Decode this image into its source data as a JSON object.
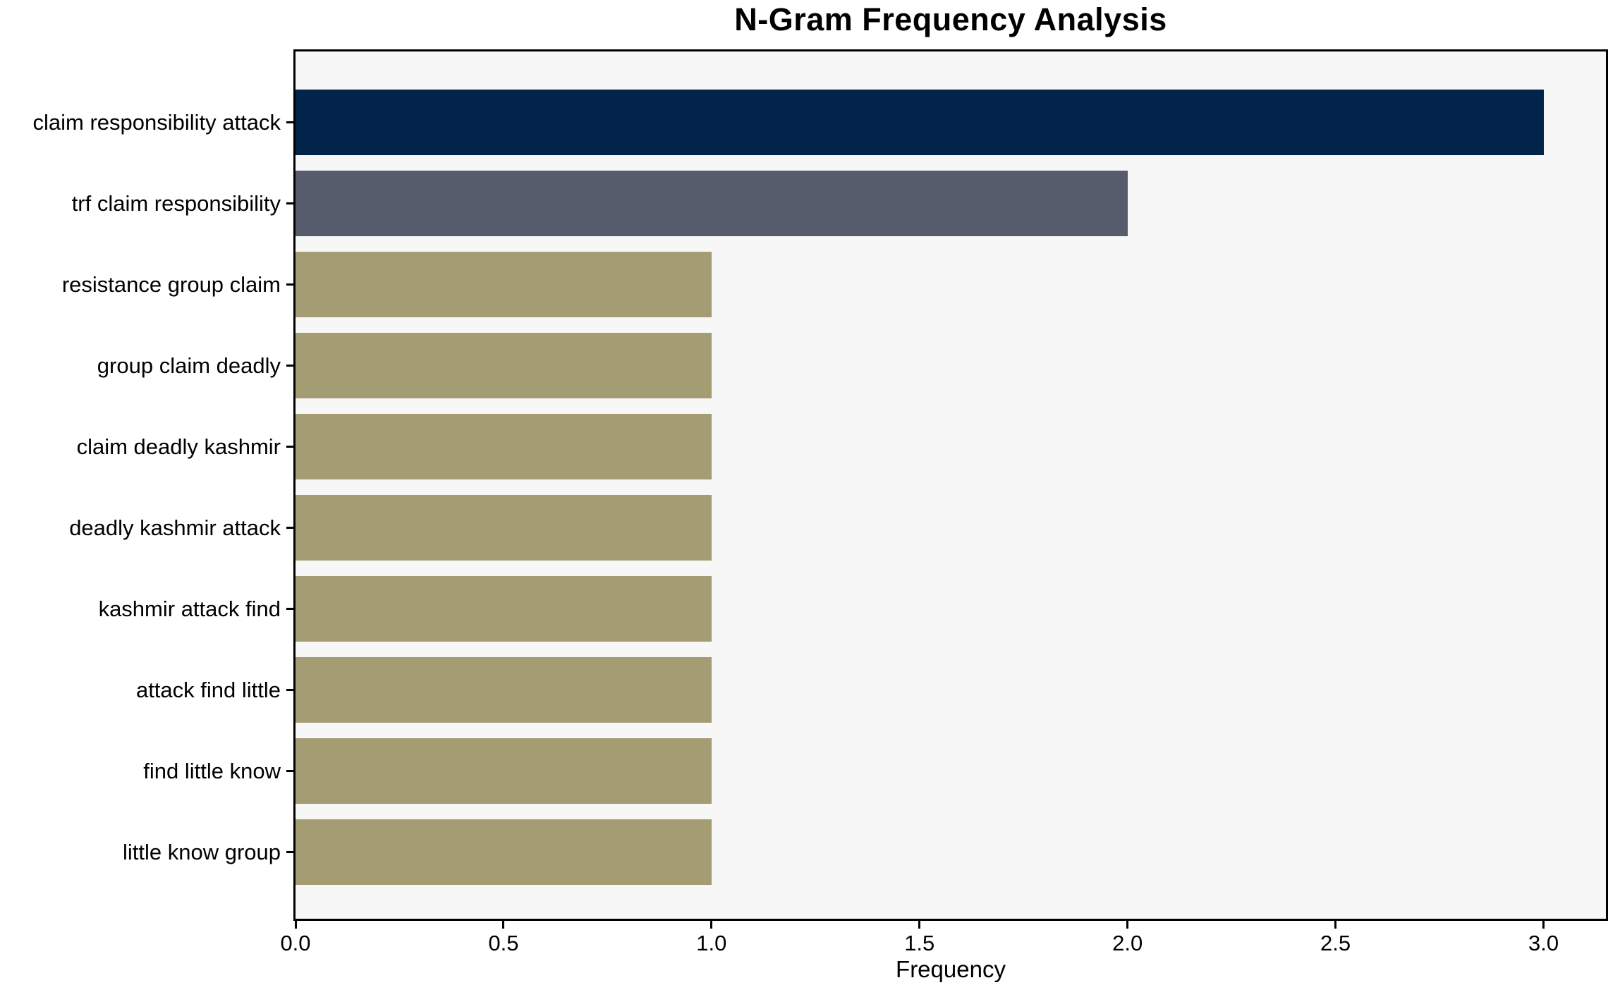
{
  "chart_data": {
    "type": "bar",
    "orientation": "horizontal",
    "title": "N-Gram Frequency Analysis",
    "xlabel": "Frequency",
    "ylabel": "",
    "categories": [
      "claim responsibility attack",
      "trf claim responsibility",
      "resistance group claim",
      "group claim deadly",
      "claim deadly kashmir",
      "deadly kashmir attack",
      "kashmir attack find",
      "attack find little",
      "find little know",
      "little know group"
    ],
    "values": [
      3,
      2,
      1,
      1,
      1,
      1,
      1,
      1,
      1,
      1
    ],
    "bar_colors": [
      "#02234a",
      "#565c6c",
      "#a49c72",
      "#a49c72",
      "#a49c72",
      "#a49c72",
      "#a49c72",
      "#a49c72",
      "#a49c72",
      "#a49c72"
    ],
    "xlim": [
      0,
      3.15
    ],
    "xticks": [
      0,
      0.5,
      1.0,
      1.5,
      2.0,
      2.5,
      3.0
    ],
    "xtick_labels": [
      "0.0",
      "0.5",
      "1.0",
      "1.5",
      "2.0",
      "2.5",
      "3.0"
    ],
    "grid": false,
    "legend_position": "none",
    "plot_background": "#f7f7f7",
    "figure_background": "#ffffff",
    "spine_color": "#000000",
    "text_color": "#000000"
  }
}
